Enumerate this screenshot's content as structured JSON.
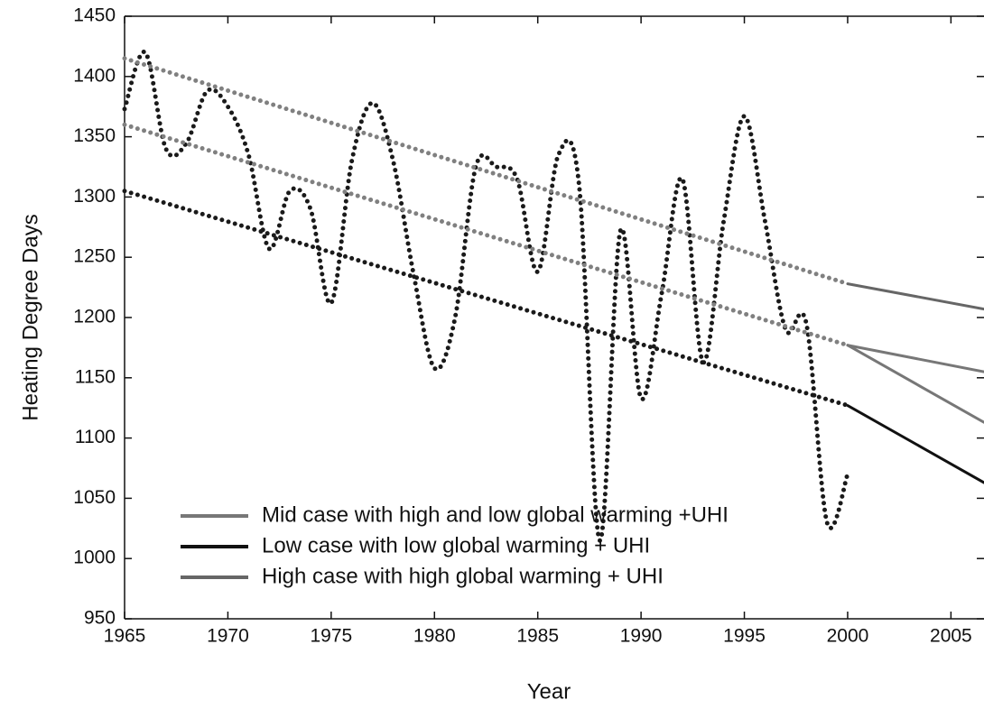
{
  "chart_data": {
    "type": "line",
    "x_label": "Year",
    "y_label": "Heating Degree Days",
    "xlim": [
      1965,
      2006.6
    ],
    "xticks": [
      1965,
      1970,
      1975,
      1980,
      1985,
      1990,
      1995,
      2000,
      2005
    ],
    "ylim": [
      950,
      1450
    ],
    "yticks": [
      950,
      1000,
      1050,
      1100,
      1150,
      1200,
      1250,
      1300,
      1350,
      1400,
      1450
    ],
    "series": [
      {
        "name": "Mid case with high and low global warming +UHI",
        "color": "#777777",
        "style": "solid",
        "x": [
          2000,
          2006.6
        ],
        "values": [
          1177,
          1113
        ]
      },
      {
        "name": "Low case with low global warming + UHI",
        "color": "#111111",
        "style": "solid",
        "x": [
          2000,
          2006.6
        ],
        "values": [
          1127,
          1063
        ]
      },
      {
        "name": "High case with high global warming + UHI",
        "color": "#666666",
        "style": "solid",
        "x": [
          2000,
          2006.6
        ],
        "values": [
          1228,
          1207
        ]
      },
      {
        "color": "#777777",
        "style": "solid",
        "x": [
          2000,
          2006.6
        ],
        "values": [
          1177,
          1155
        ]
      },
      {
        "color": "#1a1a1a",
        "style": "dotted",
        "smooth": true,
        "x": [
          1965,
          1966,
          1967,
          1968,
          1969,
          1970,
          1971,
          1972,
          1973,
          1974,
          1975,
          1976,
          1977,
          1978,
          1979,
          1980,
          1981,
          1982,
          1983,
          1984,
          1985,
          1986,
          1987,
          1988,
          1989,
          1990,
          1991,
          1992,
          1993,
          1994,
          1995,
          1996,
          1997,
          1998,
          1999,
          2000
        ],
        "values": [
          1373,
          1420,
          1340,
          1345,
          1388,
          1375,
          1335,
          1257,
          1305,
          1290,
          1212,
          1330,
          1378,
          1330,
          1235,
          1158,
          1200,
          1325,
          1325,
          1315,
          1238,
          1335,
          1310,
          1015,
          1272,
          1133,
          1220,
          1315,
          1163,
          1280,
          1367,
          1280,
          1190,
          1195,
          1030,
          1070
        ]
      },
      {
        "color": "#808080",
        "style": "dotted",
        "x": [
          1965,
          2000
        ],
        "values": [
          1415,
          1228
        ]
      },
      {
        "color": "#808080",
        "style": "dotted",
        "x": [
          1965,
          2000
        ],
        "values": [
          1360,
          1177
        ]
      },
      {
        "color": "#1a1a1a",
        "style": "dotted",
        "x": [
          1965,
          2000
        ],
        "values": [
          1305,
          1127
        ]
      }
    ]
  }
}
